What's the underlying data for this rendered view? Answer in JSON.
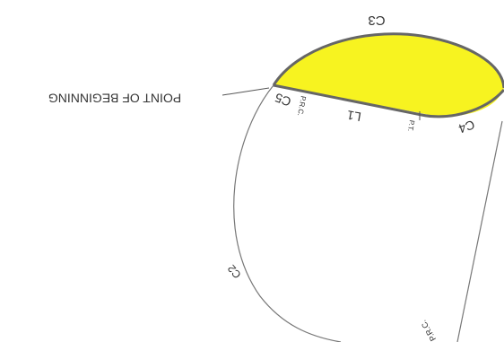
{
  "labels": {
    "c3": "C3",
    "point_of_beginning": "POINT OF BEGINNING",
    "c5": "C5",
    "l1": "L1",
    "c4": "C4",
    "prc_top": "P.R.C.",
    "pt": "P.T.",
    "c2": "C2",
    "prc_bottom": "P.R.C."
  }
}
